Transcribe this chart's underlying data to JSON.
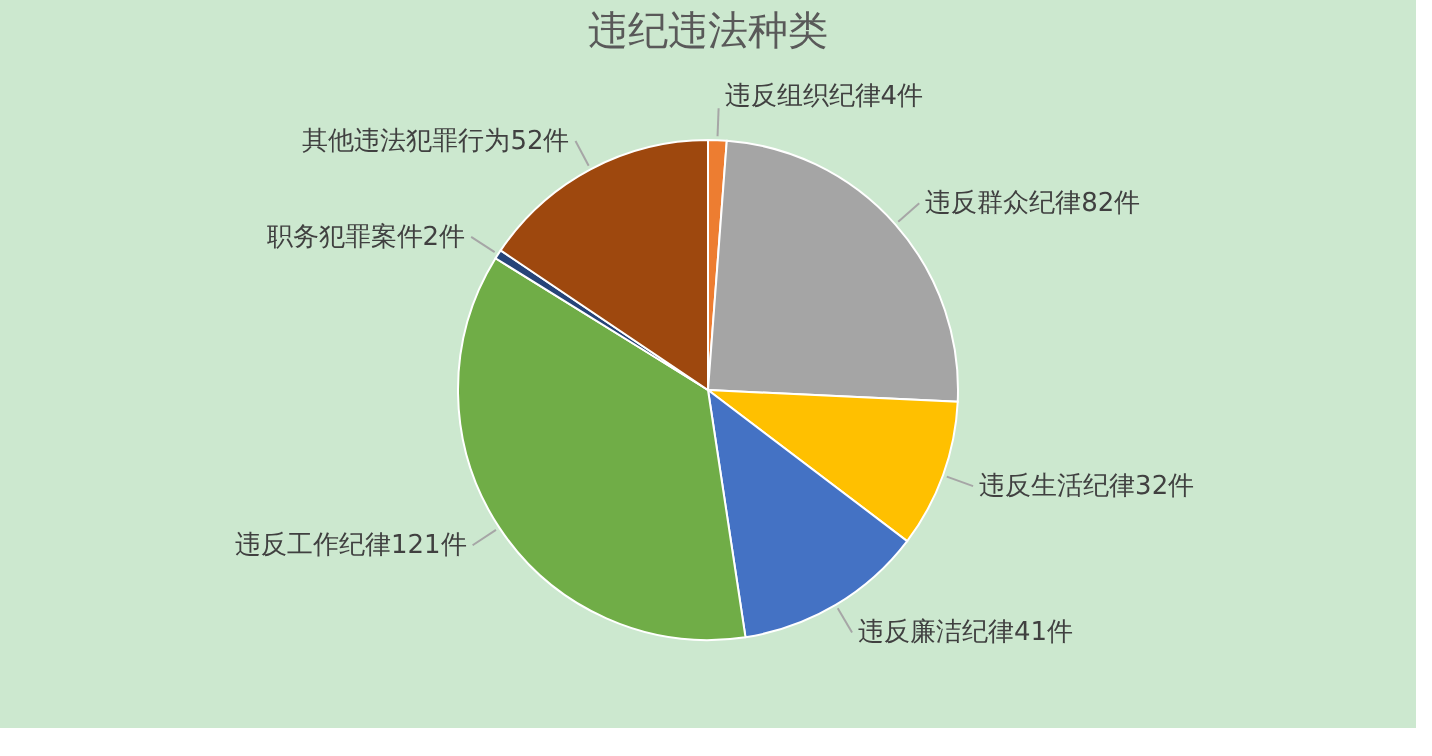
{
  "chart_data": {
    "type": "pie",
    "title": "违纪违法种类",
    "categories": [
      "违反组织纪律4件",
      "违反群众纪律82件",
      "违反生活纪律32件",
      "违反廉洁纪律41件",
      "违反工作纪律121件",
      "职务犯罪案件2件",
      "其他违法犯罪行为52件"
    ],
    "values": [
      4,
      82,
      32,
      41,
      121,
      2,
      52
    ],
    "colors": [
      "#ed7d31",
      "#a5a5a5",
      "#ffc000",
      "#4472c4",
      "#70ad47",
      "#264478",
      "#9e480e"
    ],
    "legend": false
  }
}
